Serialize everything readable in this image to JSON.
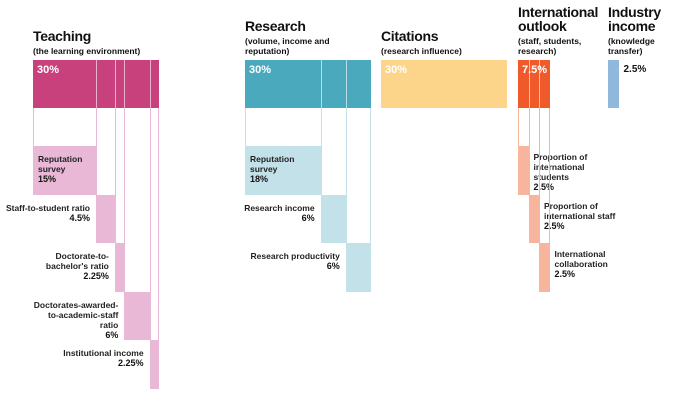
{
  "pillars": [
    {
      "title": "Teaching",
      "subtitle": "(the learning environment)",
      "weight": {
        "value": 30,
        "label": "30%"
      },
      "color": "#c8407c",
      "sub_color": "#e8b8d6",
      "metrics": [
        {
          "label": "Reputation survey",
          "weight": {
            "value": 15,
            "label": "15%"
          }
        },
        {
          "label": "Staff-to-student ratio",
          "weight": {
            "value": 4.5,
            "label": "4.5%"
          }
        },
        {
          "label": "Doctorate-to-bachelor's ratio",
          "weight": {
            "value": 2.25,
            "label": "2.25%"
          }
        },
        {
          "label": "Doctorates-awarded-to-academic-staff ratio",
          "weight": {
            "value": 6,
            "label": "6%"
          }
        },
        {
          "label": "Institutional income",
          "weight": {
            "value": 2.25,
            "label": "2.25%"
          }
        }
      ]
    },
    {
      "title": "Research",
      "subtitle": "(volume, income and reputation)",
      "weight": {
        "value": 30,
        "label": "30%"
      },
      "color": "#4aa9bd",
      "sub_color": "#c3e1e8",
      "metrics": [
        {
          "label": "Reputation survey",
          "weight": {
            "value": 18,
            "label": "18%"
          }
        },
        {
          "label": "Research income",
          "weight": {
            "value": 6,
            "label": "6%"
          }
        },
        {
          "label": "Research productivity",
          "weight": {
            "value": 6,
            "label": "6%"
          }
        }
      ]
    },
    {
      "title": "Citations",
      "subtitle": "(research influence)",
      "weight": {
        "value": 30,
        "label": "30%"
      },
      "color": "#fdd58a",
      "sub_color": "#fdd58a",
      "metrics": []
    },
    {
      "title": "International outlook",
      "subtitle": "(staff, students, research)",
      "weight": {
        "value": 7.5,
        "label": "7.5%"
      },
      "color": "#f05a2a",
      "sub_color": "#f7b59e",
      "metrics": [
        {
          "label": "Proportion of international students",
          "weight": {
            "value": 2.5,
            "label": "2.5%"
          }
        },
        {
          "label": "Proportion of international staff",
          "weight": {
            "value": 2.5,
            "label": "2.5%"
          }
        },
        {
          "label": "International collaboration",
          "weight": {
            "value": 2.5,
            "label": "2.5%"
          }
        }
      ]
    },
    {
      "title": "Industry income",
      "subtitle": "(knowledge transfer)",
      "weight": {
        "value": 2.5,
        "label": "2.5%"
      },
      "color": "#8fb8dc",
      "sub_color": "#8fb8dc",
      "metrics": []
    }
  ]
}
